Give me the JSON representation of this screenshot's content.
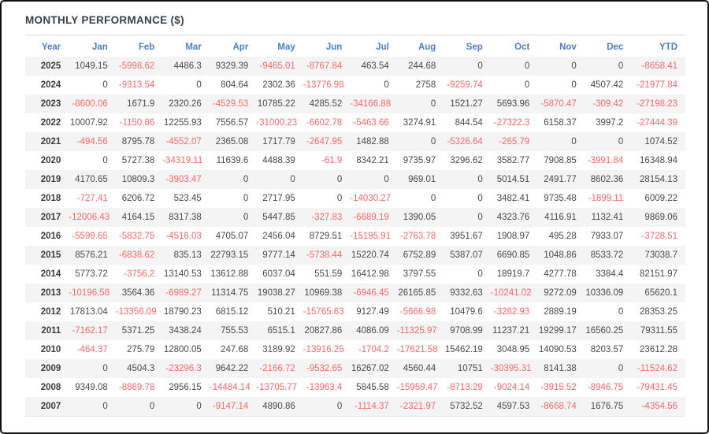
{
  "page": {
    "title": "MONTHLY PERFORMANCE ($)"
  },
  "colors": {
    "frame": "#111111",
    "title": "#3a4047",
    "rule": "#dcdcdc",
    "header-text": "#4e7fc0",
    "positive": "#4a4a4a",
    "negative": "#fb6a6a",
    "year": "#3c3c3c",
    "stripe": "#f4f4f4"
  },
  "chart_data": {
    "type": "table",
    "title": "MONTHLY PERFORMANCE ($)",
    "legend_position": "none",
    "grid": "row-stripes",
    "columns": [
      "Year",
      "Jan",
      "Feb",
      "Mar",
      "Apr",
      "May",
      "Jun",
      "Jul",
      "Aug",
      "Sep",
      "Oct",
      "Nov",
      "Dec",
      "YTD"
    ],
    "rows": [
      [
        "2025",
        "1049.15",
        "-5998.62",
        "4486.3",
        "9329.39",
        "-9465.01",
        "-8767.84",
        "463.54",
        "244.68",
        "0",
        "0",
        "0",
        "0",
        "-8658.41"
      ],
      [
        "2024",
        "0",
        "-9313.54",
        "0",
        "804.64",
        "2302.36",
        "-13776.98",
        "0",
        "2758",
        "-9259.74",
        "0",
        "0",
        "4507.42",
        "-21977.84"
      ],
      [
        "2023",
        "-8600.06",
        "1671.9",
        "2320.26",
        "-4529.53",
        "10785.22",
        "4285.52",
        "-34166.88",
        "0",
        "1521.27",
        "5693.96",
        "-5870.47",
        "-309.42",
        "-27198.23"
      ],
      [
        "2022",
        "10007.92",
        "-1150.86",
        "12255.93",
        "7556.57",
        "-31000.23",
        "-6602.78",
        "-5463.66",
        "3274.91",
        "844.54",
        "-27322.3",
        "6158.37",
        "3997.2",
        "-27444.39"
      ],
      [
        "2021",
        "-494.56",
        "8795.78",
        "-4552.07",
        "2365.08",
        "1717.79",
        "-2647.95",
        "1482.88",
        "0",
        "-5326.64",
        "-265.79",
        "0",
        "0",
        "1074.52"
      ],
      [
        "2020",
        "0",
        "5727.38",
        "-34319.11",
        "11639.6",
        "4488.39",
        "-61.9",
        "8342.21",
        "9735.97",
        "3296.62",
        "3582.77",
        "7908.85",
        "-3991.84",
        "16348.94"
      ],
      [
        "2019",
        "4170.65",
        "10809.3",
        "-3903.47",
        "0",
        "0",
        "0",
        "0",
        "969.01",
        "0",
        "5014.51",
        "2491.77",
        "8602.36",
        "28154.13"
      ],
      [
        "2018",
        "-727.41",
        "6206.72",
        "523.45",
        "0",
        "2717.95",
        "0",
        "-14030.27",
        "0",
        "0",
        "3482.41",
        "9735.48",
        "-1899.11",
        "6009.22"
      ],
      [
        "2017",
        "-12006.43",
        "4164.15",
        "8317.38",
        "0",
        "5447.85",
        "-327.83",
        "-6689.19",
        "1390.05",
        "0",
        "4323.76",
        "4116.91",
        "1132.41",
        "9869.06"
      ],
      [
        "2016",
        "-5599.65",
        "-5832.75",
        "-4516.03",
        "4705.07",
        "2456.04",
        "8729.51",
        "-15195.91",
        "-2763.78",
        "3951.67",
        "1908.97",
        "495.28",
        "7933.07",
        "-3728.51"
      ],
      [
        "2015",
        "8576.21",
        "-6838.62",
        "835.13",
        "22793.15",
        "9777.14",
        "-5738.44",
        "15220.74",
        "6752.89",
        "5387.07",
        "6690.85",
        "1048.86",
        "8533.72",
        "73038.7"
      ],
      [
        "2014",
        "5773.72",
        "-3756.2",
        "13140.53",
        "13612.88",
        "6037.04",
        "551.59",
        "16412.98",
        "3797.55",
        "0",
        "18919.7",
        "4277.78",
        "3384.4",
        "82151.97"
      ],
      [
        "2013",
        "-10196.58",
        "3564.36",
        "-6989.27",
        "11314.75",
        "19038.27",
        "10969.38",
        "-6946.45",
        "26165.85",
        "9332.63",
        "-10241.02",
        "9272.09",
        "10336.09",
        "65620.1"
      ],
      [
        "2012",
        "17813.04",
        "-13356.09",
        "18790.23",
        "6815.12",
        "510.21",
        "-15765.63",
        "9127.49",
        "-5666.98",
        "10479.6",
        "-3282.93",
        "2889.19",
        "0",
        "28353.25"
      ],
      [
        "2011",
        "-7162.17",
        "5371.25",
        "3438.24",
        "755.53",
        "6515.1",
        "20827.86",
        "4086.09",
        "-11325.97",
        "9708.99",
        "11237.21",
        "19299.17",
        "16560.25",
        "79311.55"
      ],
      [
        "2010",
        "-464.37",
        "275.79",
        "12800.05",
        "247.68",
        "3189.92",
        "-13916.25",
        "-1704.2",
        "-17621.58",
        "15462.19",
        "3048.95",
        "14090.53",
        "8203.57",
        "23612.28"
      ],
      [
        "2009",
        "0",
        "4504.3",
        "-23296.3",
        "9642.22",
        "-2166.72",
        "-9532.65",
        "16267.02",
        "4560.44",
        "10751",
        "-30395.31",
        "8141.38",
        "0",
        "-11524.62"
      ],
      [
        "2008",
        "9349.08",
        "-8869.78",
        "2956.15",
        "-14484.14",
        "-13705.77",
        "-13963.4",
        "5845.58",
        "-15959.47",
        "-8713.29",
        "-9024.14",
        "-3915.52",
        "-8946.75",
        "-79431.45"
      ],
      [
        "2007",
        "0",
        "0",
        "0",
        "-9147.14",
        "4890.86",
        "0",
        "-1114.37",
        "-2321.97",
        "5732.52",
        "4597.53",
        "-8668.74",
        "1676.75",
        "-4354.56"
      ]
    ]
  }
}
